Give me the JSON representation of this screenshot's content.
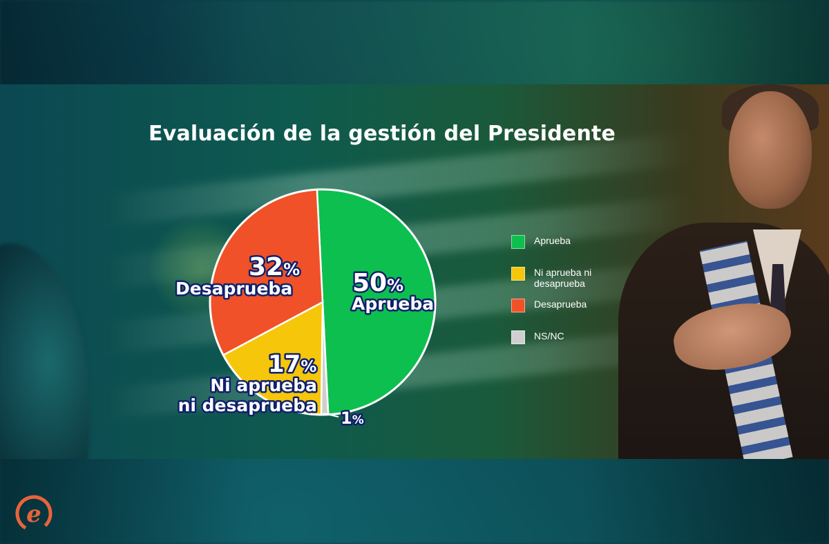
{
  "title": "Evaluación de la gestión del Presidente",
  "chart_data": {
    "type": "pie",
    "title": "Evaluación de la gestión del Presidente",
    "slices": [
      {
        "name": "Aprueba",
        "value": 50,
        "label": "50%",
        "color": "#0dbf4f"
      },
      {
        "name": "NS/NC",
        "value": 1,
        "label": "1%",
        "color": "#cfcfcf"
      },
      {
        "name": "Ni aprueba ni desaprueba",
        "value": 17,
        "label": "17%",
        "color": "#f5c60a"
      },
      {
        "name": "Desaprueba",
        "value": 32,
        "label": "32%",
        "color": "#f05128"
      }
    ],
    "legend_position": "right"
  },
  "labels": {
    "aprueba_pct": "50",
    "aprueba_name": "Aprueba",
    "desaprueba_pct": "32",
    "desaprueba_name": "Desaprueba",
    "ni_pct": "17",
    "ni_line1": "Ni aprueba",
    "ni_line2": "ni desaprueba",
    "nsnc_pct": "1",
    "pct_sign": "%"
  },
  "legend": [
    {
      "label": "Aprueba",
      "color": "#0dbf4f"
    },
    {
      "label": "Ni aprueba ni desaprueba",
      "color": "#f5c60a"
    },
    {
      "label": "Desaprueba",
      "color": "#f05128"
    },
    {
      "label": "NS/NC",
      "color": "#cfcfcf"
    }
  ],
  "logo": {
    "icon": "e-logo-icon",
    "letter": "e",
    "color": "#e8643a"
  }
}
